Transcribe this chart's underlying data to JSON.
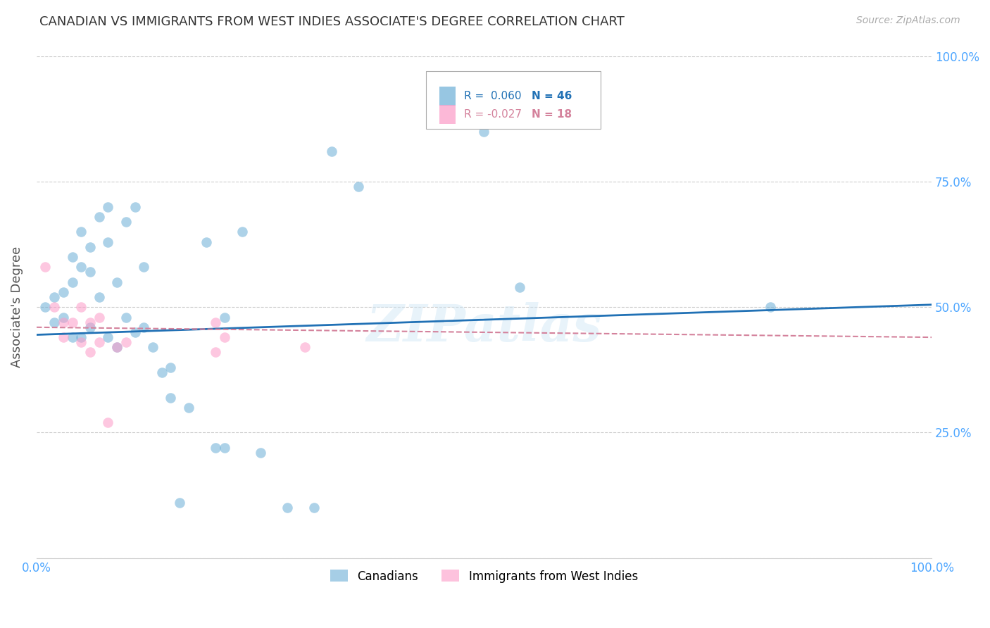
{
  "title": "CANADIAN VS IMMIGRANTS FROM WEST INDIES ASSOCIATE'S DEGREE CORRELATION CHART",
  "source": "Source: ZipAtlas.com",
  "ylabel": "Associate's Degree",
  "watermark": "ZIPatlas",
  "legend_r1": "R =  0.060",
  "legend_n1": "N = 46",
  "legend_r2": "R = -0.027",
  "legend_n2": "N = 18",
  "canadian_color": "#6baed6",
  "westindies_color": "#fc9ac7",
  "trend_canadian_color": "#2171b5",
  "trend_westindies_color": "#d4829c",
  "background_color": "#ffffff",
  "grid_color": "#cccccc",
  "axis_label_color": "#4da6ff",
  "title_color": "#333333",
  "canadians_x": [
    1,
    2,
    2,
    3,
    3,
    4,
    4,
    4,
    5,
    5,
    5,
    6,
    6,
    6,
    7,
    7,
    8,
    8,
    8,
    9,
    9,
    10,
    10,
    11,
    11,
    12,
    12,
    13,
    14,
    15,
    15,
    16,
    17,
    19,
    20,
    21,
    21,
    23,
    25,
    28,
    31,
    33,
    36,
    50,
    54,
    82
  ],
  "canadians_y": [
    50,
    52,
    47,
    53,
    48,
    60,
    55,
    44,
    65,
    58,
    44,
    62,
    57,
    46,
    68,
    52,
    70,
    63,
    44,
    55,
    42,
    67,
    48,
    70,
    45,
    58,
    46,
    42,
    37,
    32,
    38,
    11,
    30,
    63,
    22,
    22,
    48,
    65,
    21,
    10,
    10,
    81,
    74,
    85,
    54,
    50
  ],
  "westindies_x": [
    1,
    2,
    3,
    3,
    4,
    5,
    5,
    6,
    6,
    7,
    7,
    8,
    9,
    10,
    20,
    20,
    21,
    30
  ],
  "westindies_y": [
    58,
    50,
    44,
    47,
    47,
    50,
    43,
    47,
    41,
    48,
    43,
    27,
    42,
    43,
    47,
    41,
    44,
    42
  ],
  "xlim": [
    0,
    100
  ],
  "ylim": [
    0,
    100
  ],
  "xticks": [
    0,
    25,
    50,
    75,
    100
  ],
  "xtick_labels": [
    "0.0%",
    "",
    "",
    "",
    "100.0%"
  ],
  "yticks": [
    0,
    25,
    50,
    75,
    100
  ],
  "ytick_labels_right": [
    "",
    "25.0%",
    "50.0%",
    "75.0%",
    "100.0%"
  ],
  "canadian_trend": [
    44.5,
    50.5
  ],
  "westindies_trend": [
    46.0,
    44.0
  ]
}
